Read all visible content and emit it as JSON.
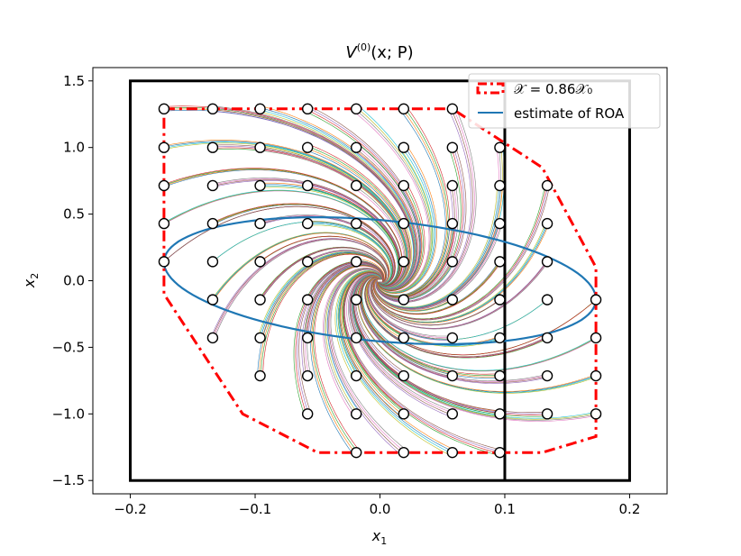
{
  "chart_data": {
    "type": "line",
    "title": "V(0)(x; P)",
    "title_main": "V",
    "title_sup": "(0)",
    "title_rest": "(x; P)",
    "xlabel": "x1",
    "xlabel_main": "x",
    "xlabel_sub": "1",
    "ylabel": "x2",
    "ylabel_main": "x",
    "ylabel_sub": "2",
    "xlim": [
      -0.23,
      0.23
    ],
    "ylim": [
      -1.6,
      1.6
    ],
    "xticks": [
      {
        "value": -0.2,
        "label": "−0.2"
      },
      {
        "value": -0.1,
        "label": "−0.1"
      },
      {
        "value": 0.0,
        "label": "0.0"
      },
      {
        "value": 0.1,
        "label": "0.1"
      },
      {
        "value": 0.2,
        "label": "0.2"
      }
    ],
    "yticks": [
      {
        "value": 1.5,
        "label": "1.5"
      },
      {
        "value": 1.0,
        "label": "1.0"
      },
      {
        "value": 0.5,
        "label": "0.5"
      },
      {
        "value": 0.0,
        "label": "0.0"
      },
      {
        "value": -0.5,
        "label": "−0.5"
      },
      {
        "value": -1.0,
        "label": "−1.0"
      },
      {
        "value": -1.5,
        "label": "−1.5"
      }
    ],
    "legend": [
      {
        "label": "𝒳 = 0.86𝒳₀",
        "color": "#ff0000",
        "style": "dashdot"
      },
      {
        "label": "estimate of ROA",
        "color": "#1f77b4",
        "style": "solid"
      }
    ],
    "legend_position": "upper right",
    "box": {
      "x": [
        -0.2,
        0.2
      ],
      "y": [
        -1.5,
        1.5
      ],
      "color": "#000000"
    },
    "vertical_line": {
      "x": 0.1,
      "y": [
        -1.5,
        1.5
      ],
      "color": "#000000"
    },
    "roa_ellipse": {
      "center": [
        0.0,
        0.0
      ],
      "semi_axis_x": 0.173,
      "semi_axis_y": 0.735,
      "tilt_slope": -1.3,
      "color": "#1f77b4"
    },
    "constraint_region": {
      "color": "#ff0000",
      "points": [
        [
          -0.173,
          1.29
        ],
        [
          0.058,
          1.29
        ],
        [
          0.13,
          0.85
        ],
        [
          0.173,
          0.1
        ],
        [
          0.173,
          -1.17
        ],
        [
          0.13,
          -1.29
        ],
        [
          -0.05,
          -1.29
        ],
        [
          -0.11,
          -1.0
        ],
        [
          -0.173,
          -0.1
        ],
        [
          -0.173,
          1.29
        ]
      ]
    },
    "initial_points": {
      "x_grid": [
        -0.173,
        -0.134,
        -0.096,
        -0.058,
        -0.019,
        0.019,
        0.058,
        0.096,
        0.134,
        0.173
      ],
      "rows": [
        {
          "y": 1.29,
          "x": [
            -0.173,
            -0.134,
            -0.096,
            -0.058,
            -0.019,
            0.019,
            0.058
          ]
        },
        {
          "y": 1.0,
          "x": [
            -0.173,
            -0.134,
            -0.096,
            -0.058,
            -0.019,
            0.019,
            0.058,
            0.096
          ]
        },
        {
          "y": 0.714,
          "x": [
            -0.173,
            -0.134,
            -0.096,
            -0.058,
            -0.019,
            0.019,
            0.058,
            0.096,
            0.134
          ]
        },
        {
          "y": 0.429,
          "x": [
            -0.173,
            -0.134,
            -0.096,
            -0.058,
            -0.019,
            0.019,
            0.058,
            0.096,
            0.134
          ]
        },
        {
          "y": 0.143,
          "x": [
            -0.173,
            -0.134,
            -0.096,
            -0.058,
            -0.019,
            0.019,
            0.058,
            0.096,
            0.134
          ]
        },
        {
          "y": -0.143,
          "x": [
            -0.134,
            -0.096,
            -0.058,
            -0.019,
            0.019,
            0.058,
            0.096,
            0.134,
            0.173
          ]
        },
        {
          "y": -0.429,
          "x": [
            -0.134,
            -0.096,
            -0.058,
            -0.019,
            0.019,
            0.058,
            0.096,
            0.134,
            0.173
          ]
        },
        {
          "y": -0.714,
          "x": [
            -0.096,
            -0.058,
            -0.019,
            0.019,
            0.058,
            0.096,
            0.134,
            0.173
          ]
        },
        {
          "y": -1.0,
          "x": [
            -0.058,
            -0.019,
            0.019,
            0.058,
            0.096,
            0.134,
            0.173
          ]
        },
        {
          "y": -1.29,
          "x": [
            -0.019,
            0.019,
            0.058,
            0.096
          ]
        }
      ]
    },
    "trajectory_colors": [
      "#1f77b4",
      "#ff7f0e",
      "#2ca02c",
      "#d62728",
      "#9467bd",
      "#8c564b",
      "#e377c2",
      "#7f7f7f",
      "#bcbd22",
      "#17becf"
    ]
  }
}
